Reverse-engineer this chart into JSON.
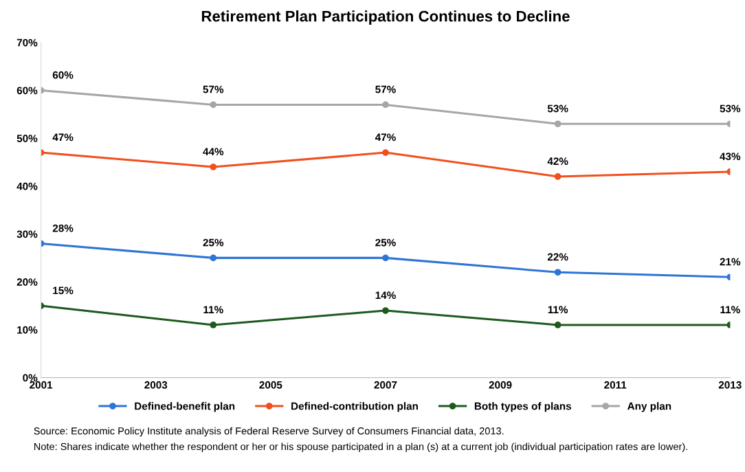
{
  "chart_data": {
    "type": "line",
    "title": "Retirement Plan Participation Continues to Decline",
    "x": [
      2001,
      2004,
      2007,
      2010,
      2013
    ],
    "xlim": [
      2001,
      2013
    ],
    "xticks": [
      2001,
      2003,
      2005,
      2007,
      2009,
      2011,
      2013
    ],
    "ylim": [
      0,
      70
    ],
    "yticks": [
      {
        "value": 0,
        "label": "0%"
      },
      {
        "value": 10,
        "label": "10%"
      },
      {
        "value": 20,
        "label": "20%"
      },
      {
        "value": 30,
        "label": "30%"
      },
      {
        "value": 40,
        "label": "40%"
      },
      {
        "value": 50,
        "label": "50%"
      },
      {
        "value": 60,
        "label": "60%"
      },
      {
        "value": 70,
        "label": "70%"
      }
    ],
    "series": [
      {
        "name": "Defined-benefit plan",
        "color": "#2e75d6",
        "values": [
          28,
          25,
          25,
          22,
          21
        ],
        "value_labels": [
          "28%",
          "25%",
          "25%",
          "22%",
          "21%"
        ]
      },
      {
        "name": "Defined-contribution plan",
        "color": "#f0501e",
        "values": [
          47,
          44,
          47,
          42,
          43
        ],
        "value_labels": [
          "47%",
          "44%",
          "47%",
          "42%",
          "43%"
        ]
      },
      {
        "name": "Both types of plans",
        "color": "#1e5a1e",
        "values": [
          15,
          11,
          14,
          11,
          11
        ],
        "value_labels": [
          "15%",
          "11%",
          "14%",
          "11%",
          "11%"
        ]
      },
      {
        "name": "Any plan",
        "color": "#a6a6a6",
        "values": [
          60,
          57,
          57,
          53,
          53
        ],
        "value_labels": [
          "60%",
          "57%",
          "57%",
          "53%",
          "53%"
        ]
      }
    ],
    "marker": "circle",
    "line_style": "solid",
    "grid": false,
    "legend": "bottom",
    "annotations": [
      "Source: Economic Policy Institute analysis of Federal Reserve Survey of Consumers Financial data, 2013.",
      "Note: Shares indicate whether the respondent or her or his spouse participated in a plan (s) at a current job (individual participation rates are lower)."
    ]
  }
}
